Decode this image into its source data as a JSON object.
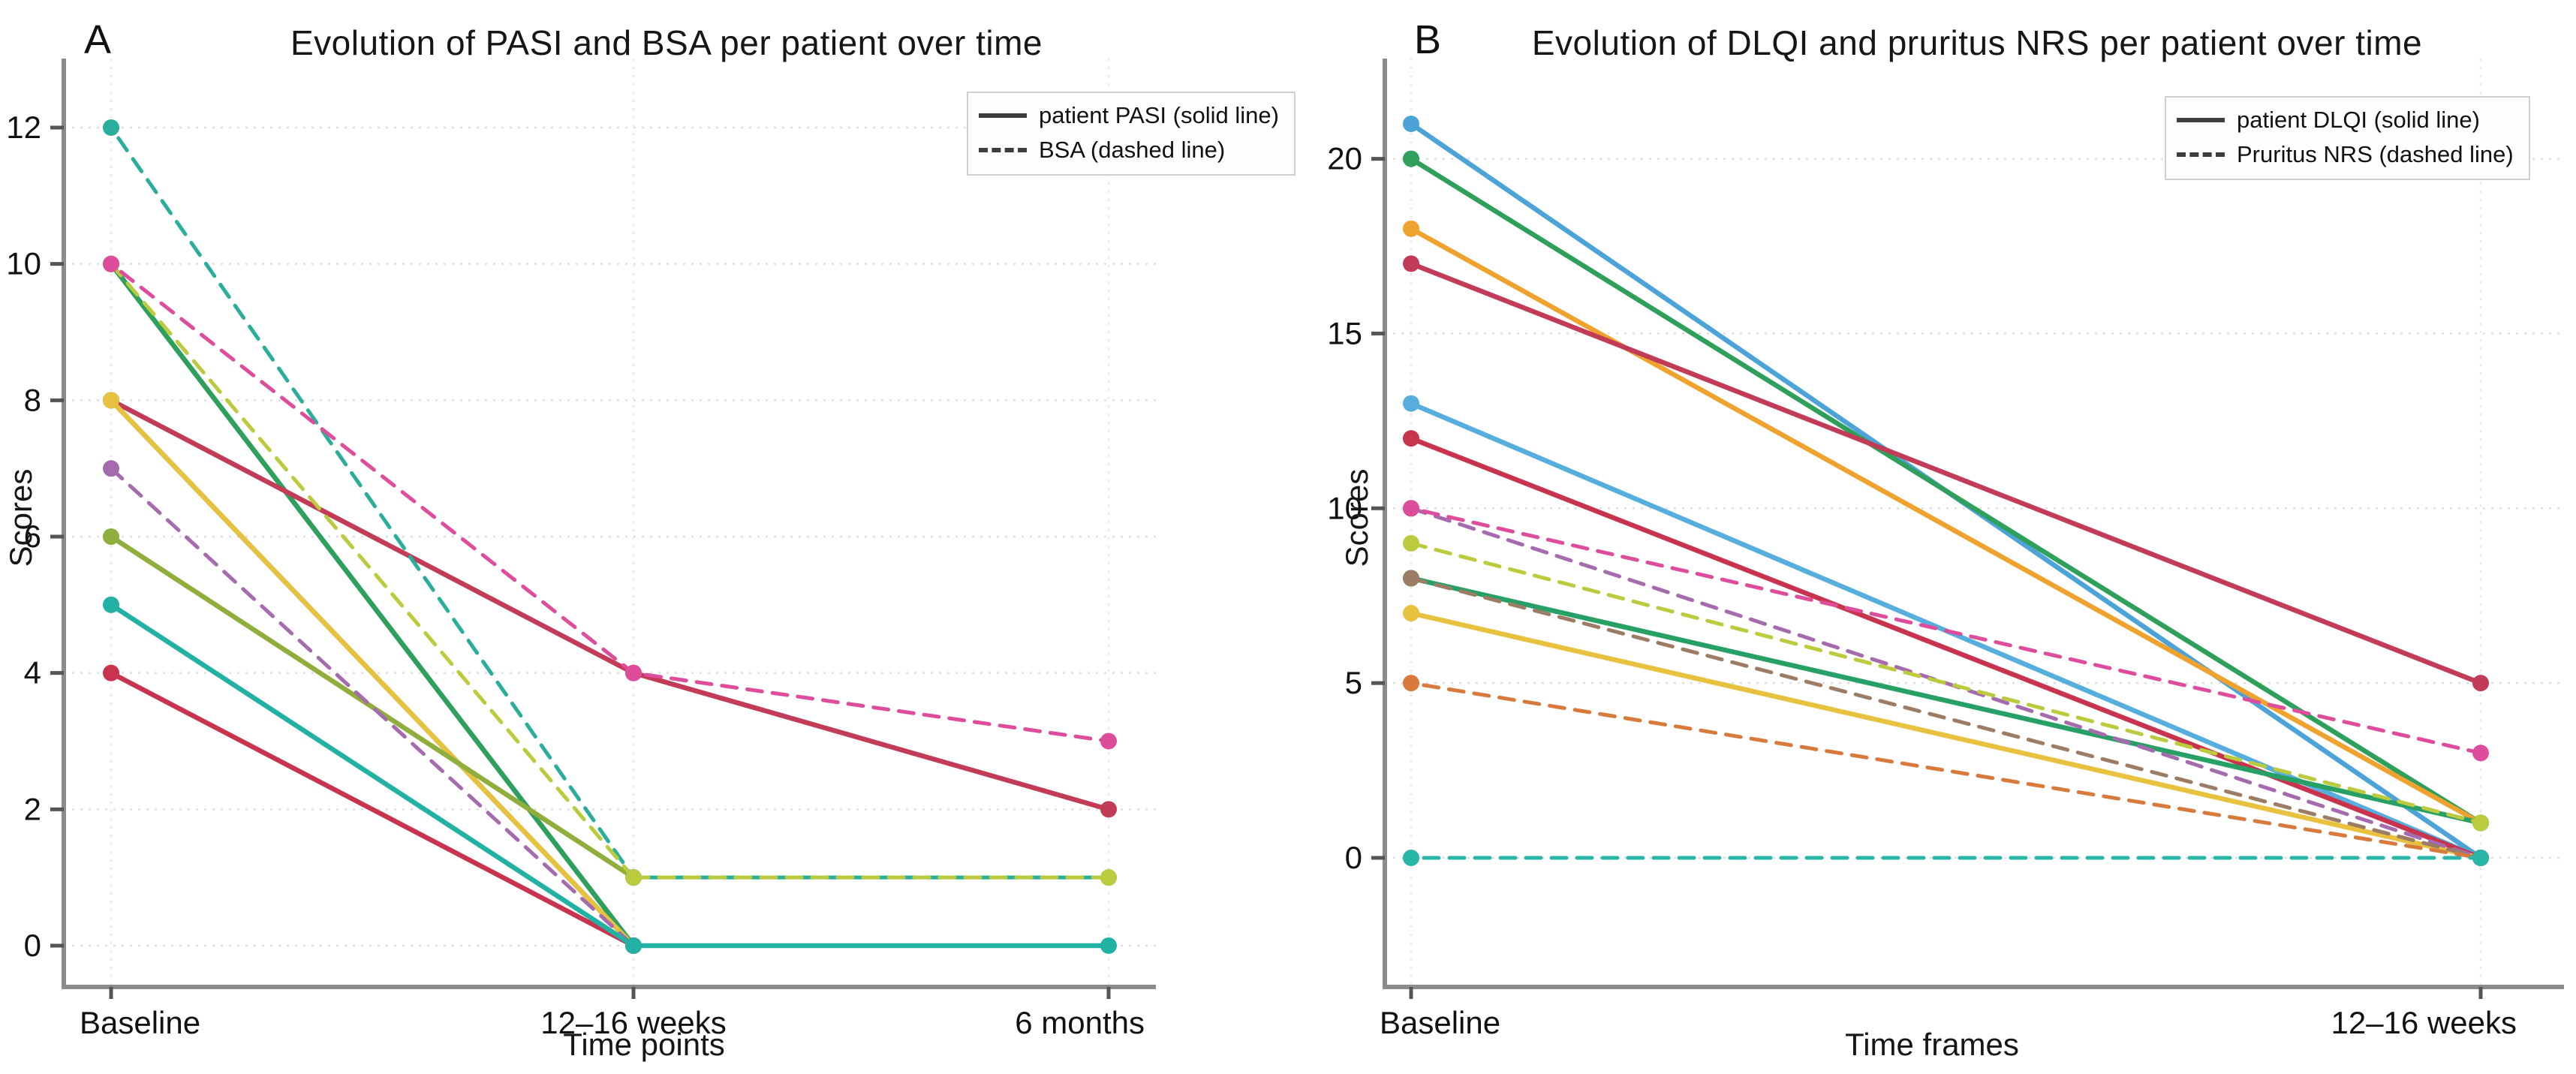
{
  "figure": {
    "panels": [
      {
        "letter": "A"
      },
      {
        "letter": "B"
      }
    ]
  },
  "chart_data": [
    {
      "type": "line",
      "title": "Evolution of PASI and BSA per patient over time",
      "xlabel": "Time points",
      "ylabel": "Scores",
      "categories": [
        "Baseline",
        "12–16 weeks",
        "6 months"
      ],
      "yticks": [
        0,
        2,
        4,
        6,
        8,
        10,
        12
      ],
      "ylim": [
        0,
        12.7
      ],
      "grid": true,
      "legend_position": "top-right",
      "legend": [
        {
          "style": "solid",
          "label": "patient PASI (solid line)"
        },
        {
          "style": "dashed",
          "label": "BSA (dashed line)"
        }
      ],
      "series": [
        {
          "style": "solid",
          "color": "#4BA3D8",
          "values": [
            10,
            0,
            null
          ]
        },
        {
          "style": "solid",
          "color": "#2FA05C",
          "values": [
            10,
            0,
            null
          ]
        },
        {
          "style": "solid",
          "color": "#C23B57",
          "values": [
            8,
            4,
            2
          ]
        },
        {
          "style": "solid",
          "color": "#27A065",
          "values": [
            8,
            0,
            null
          ]
        },
        {
          "style": "solid",
          "color": "#E8C23F",
          "values": [
            8,
            0,
            null
          ]
        },
        {
          "style": "solid",
          "color": "#8FAE3B",
          "values": [
            6,
            1,
            null
          ]
        },
        {
          "style": "solid",
          "color": "#C8344E",
          "values": [
            4,
            0,
            null
          ]
        },
        {
          "style": "dashed",
          "color": "#2AAE9C",
          "values": [
            12,
            1,
            1
          ]
        },
        {
          "style": "dashed",
          "color": "#BCCB3D",
          "values": [
            10,
            1,
            1
          ]
        },
        {
          "style": "dashed",
          "color": "#DE4D9B",
          "values": [
            10,
            4,
            3
          ]
        },
        {
          "style": "dashed",
          "color": "#A66BAE",
          "values": [
            7,
            0,
            null
          ]
        },
        {
          "style": "solid",
          "color": "#22B2A4",
          "values": [
            5,
            0,
            0
          ]
        }
      ]
    },
    {
      "type": "line",
      "title": "Evolution of DLQI and pruritus NRS per patient over time",
      "xlabel": "Time frames",
      "ylabel": "Scores",
      "categories": [
        "Baseline",
        "12–16 weeks"
      ],
      "yticks": [
        0,
        5,
        10,
        15,
        20
      ],
      "ylim": [
        0,
        21.5
      ],
      "grid": true,
      "legend_position": "top-right",
      "legend": [
        {
          "style": "solid",
          "label": "patient DLQI (solid line)"
        },
        {
          "style": "dashed",
          "label": "Pruritus NRS (dashed line)"
        }
      ],
      "series": [
        {
          "style": "solid",
          "color": "#4BA3D8",
          "values": [
            21,
            0
          ]
        },
        {
          "style": "solid",
          "color": "#2FA05C",
          "values": [
            20,
            1
          ]
        },
        {
          "style": "solid",
          "color": "#F0A22E",
          "values": [
            18,
            1
          ]
        },
        {
          "style": "solid",
          "color": "#C23B57",
          "values": [
            17,
            5
          ]
        },
        {
          "style": "solid",
          "color": "#55AEDD",
          "values": [
            13,
            0
          ]
        },
        {
          "style": "solid",
          "color": "#C8344E",
          "values": [
            12,
            0
          ]
        },
        {
          "style": "solid",
          "color": "#27A065",
          "values": [
            8,
            1
          ]
        },
        {
          "style": "solid",
          "color": "#E8C23F",
          "values": [
            7,
            0
          ]
        },
        {
          "style": "dashed",
          "color": "#A66BAE",
          "values": [
            10,
            0
          ]
        },
        {
          "style": "dashed",
          "color": "#DE4D9B",
          "values": [
            10,
            3
          ]
        },
        {
          "style": "dashed",
          "color": "#9C7C64",
          "values": [
            8,
            0
          ]
        },
        {
          "style": "dashed",
          "color": "#D77A3C",
          "values": [
            5,
            0
          ]
        },
        {
          "style": "dashed",
          "color": "#BCCB3D",
          "values": [
            9,
            1
          ]
        },
        {
          "style": "dashed",
          "color": "#27B6A8",
          "values": [
            0,
            0
          ]
        }
      ]
    }
  ]
}
